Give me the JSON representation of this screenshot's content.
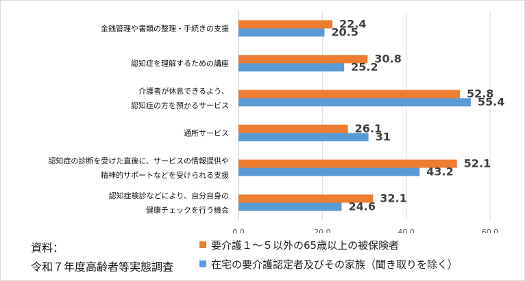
{
  "chart_data": {
    "type": "bar",
    "orientation": "horizontal",
    "categories": [
      [
        "金銭管理や書類の整理・手続きの支援"
      ],
      [
        "認知症を理解するための講座"
      ],
      [
        "介護者が休息できるよう、",
        "認知症の方を預かるサービス"
      ],
      [
        "通所サービス"
      ],
      [
        "認知症の診断を受けた直後に、サービスの情報提供や",
        "精神的サポートなどを受けられる支援"
      ],
      [
        "認知症検診などにより、自分自身の",
        "健康チェックを行う機会"
      ]
    ],
    "series": [
      {
        "name": "要介護１～５以外の65歳以上の被保険者",
        "color": "#ED7D31",
        "values": [
          22.4,
          30.8,
          52.8,
          26.1,
          52.1,
          32.1
        ],
        "labels": [
          "22.4",
          "30.8",
          "52.8",
          "26.1",
          "52.1",
          "32.1"
        ]
      },
      {
        "name": "在宅の要介護認定者及びその家族（聞き取りを除く）",
        "color": "#5B9BD5",
        "values": [
          20.5,
          25.2,
          55.4,
          31,
          43.2,
          24.6
        ],
        "labels": [
          "20.5",
          "25.2",
          "55.4",
          "31",
          "43.2",
          "24.6"
        ]
      }
    ],
    "x_axis": {
      "min": 0,
      "max": 60,
      "ticks": [
        0,
        20,
        40,
        60
      ],
      "tick_labels": [
        "0.0",
        "20.0",
        "40.0",
        "60.0"
      ],
      "grid": true
    },
    "legend_position": "bottom-right"
  },
  "source": {
    "label": "資料：",
    "text": "令和７年度高齢者等実態調査"
  }
}
